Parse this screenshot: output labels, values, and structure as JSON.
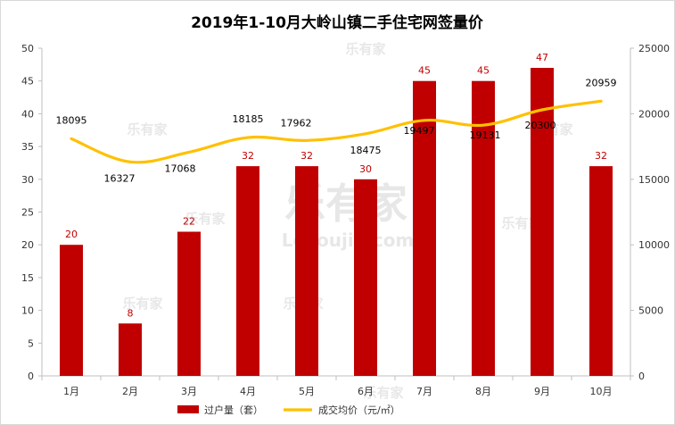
{
  "watermark": {
    "brand": "乐有家",
    "domain": "Leyoujia.com"
  },
  "chart_data": {
    "type": "bar+line",
    "title": "2019年1-10月大岭山镇二手住宅网签量价",
    "categories": [
      "1月",
      "2月",
      "3月",
      "4月",
      "5月",
      "6月",
      "7月",
      "8月",
      "9月",
      "10月"
    ],
    "series": [
      {
        "name": "过户量（套）",
        "type": "bar",
        "axis": "left",
        "color": "#c00000",
        "label_color": "#c00000",
        "values": [
          20,
          8,
          22,
          32,
          32,
          30,
          45,
          45,
          47,
          32
        ],
        "labels": [
          "20",
          "8",
          "22",
          "32",
          "32",
          "30",
          "45",
          "45",
          "47",
          "32"
        ]
      },
      {
        "name": "成交均价（元/㎡）",
        "type": "line",
        "axis": "right",
        "color": "#ffc000",
        "label_color": "#000000",
        "values": [
          18095,
          16327,
          17068,
          18185,
          17962,
          18475,
          19497,
          19131,
          20300,
          20959
        ],
        "labels": [
          "18095",
          "16327",
          "17068",
          "18185",
          "17962",
          "18475",
          "19497",
          "19131",
          "20300",
          "20959"
        ]
      }
    ],
    "y_left": {
      "min": 0,
      "max": 50,
      "step": 5,
      "ticks": [
        "0",
        "5",
        "10",
        "15",
        "20",
        "25",
        "30",
        "35",
        "40",
        "45",
        "50"
      ]
    },
    "y_right": {
      "min": 0,
      "max": 25000,
      "step": 5000,
      "ticks": [
        "0",
        "5000",
        "10000",
        "15000",
        "20000",
        "25000"
      ]
    },
    "legend_position": "bottom",
    "grid": false
  }
}
